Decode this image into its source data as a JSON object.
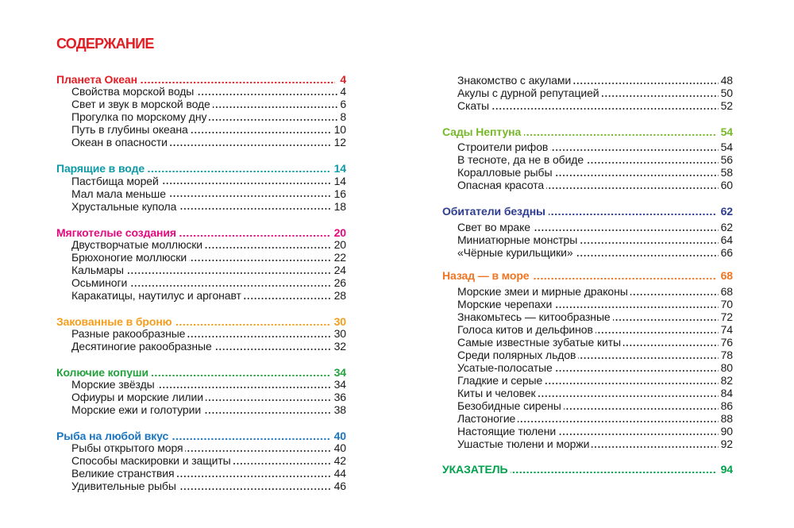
{
  "page": {
    "title": "СОДЕРЖАНИЕ",
    "title_color": "#e21e25",
    "background": "#ffffff",
    "text_color": "#1a1a1a"
  },
  "columns": [
    {
      "side": "left",
      "groups": [
        {
          "heading": {
            "label": "Планета Океан",
            "page": "4",
            "color": "#e21e25"
          },
          "items": [
            {
              "label": "Свойства морской воды",
              "page": "4"
            },
            {
              "label": "Свет и звук в морской воде",
              "page": "6"
            },
            {
              "label": "Прогулка по морскому дну",
              "page": "8"
            },
            {
              "label": "Путь в глубины океана",
              "page": "10"
            },
            {
              "label": "Океан в опасности",
              "page": "12"
            }
          ]
        },
        {
          "heading": {
            "label": "Парящие в воде",
            "page": "14",
            "color": "#0e9aa8"
          },
          "items": [
            {
              "label": "Пастбища морей",
              "page": "14"
            },
            {
              "label": "Мал мала меньше",
              "page": "16"
            },
            {
              "label": "Хрустальные купола",
              "page": "18"
            }
          ]
        },
        {
          "heading": {
            "label": "Мягкотелые создания",
            "page": "20",
            "color": "#e5097f"
          },
          "items": [
            {
              "label": "Двустворчатые моллюски",
              "page": "20"
            },
            {
              "label": "Брюхоногие моллюски",
              "page": "22"
            },
            {
              "label": "Кальмары",
              "page": "24"
            },
            {
              "label": "Осьминоги",
              "page": "26"
            },
            {
              "label": "Каракатицы, наутилус и аргонавт",
              "page": "28"
            }
          ]
        },
        {
          "heading": {
            "label": "Закованные в броню",
            "page": "30",
            "color": "#f49d1c"
          },
          "items": [
            {
              "label": "Разные ракообразные",
              "page": "30"
            },
            {
              "label": "Десятиногие ракообразные",
              "page": "32"
            }
          ]
        },
        {
          "heading": {
            "label": "Колючие копуши",
            "page": "34",
            "color": "#23a13d"
          },
          "items": [
            {
              "label": "Морские звёзды",
              "page": "34"
            },
            {
              "label": "Офиуры и морские лилии",
              "page": "36"
            },
            {
              "label": "Морские ежи и голотурии",
              "page": "38"
            }
          ]
        },
        {
          "heading": {
            "label": "Рыба на любой вкус",
            "page": "40",
            "color": "#1b75c0"
          },
          "items": [
            {
              "label": "Рыбы открытого моря",
              "page": "40"
            },
            {
              "label": "Способы маскировки и защиты",
              "page": "42"
            },
            {
              "label": "Великие странствия",
              "page": "44"
            },
            {
              "label": "Удивительные рыбы",
              "page": "46"
            }
          ]
        }
      ]
    },
    {
      "side": "right",
      "groups": [
        {
          "heading": null,
          "items": [
            {
              "label": "Знакомство с акулами",
              "page": "48"
            },
            {
              "label": "Акулы с дурной репутацией",
              "page": "50"
            },
            {
              "label": "Скаты",
              "page": "52"
            }
          ]
        },
        {
          "heading": {
            "label": "Сады Нептуна",
            "page": "54",
            "color": "#76b82a"
          },
          "items": [
            {
              "label": "Строители рифов",
              "page": "54"
            },
            {
              "label": "В тесноте, да не в обиде",
              "page": "56"
            },
            {
              "label": "Коралловые рыбы",
              "page": "58"
            },
            {
              "label": "Опасная красота",
              "page": "60"
            }
          ]
        },
        {
          "heading": {
            "label": "Обитатели бездны",
            "page": "62",
            "color": "#2e3d91"
          },
          "items": [
            {
              "label": "Свет во мраке",
              "page": "62"
            },
            {
              "label": "Миниатюрные монстры",
              "page": "64"
            },
            {
              "label": "«Чёрные курильщики»",
              "page": "66"
            }
          ]
        },
        {
          "heading": {
            "label": "Назад — в море",
            "page": "68",
            "color": "#ee7522"
          },
          "items": [
            {
              "label": "Морские змеи и мирные драконы",
              "page": "68"
            },
            {
              "label": "Морские черепахи",
              "page": "70"
            },
            {
              "label": "Знакомьтесь — китообразные",
              "page": "72"
            },
            {
              "label": "Голоса китов и дельфинов",
              "page": "74"
            },
            {
              "label": "Самые известные зубатые киты",
              "page": "76"
            },
            {
              "label": "Среди полярных льдов",
              "page": "78"
            },
            {
              "label": "Усатые-полосатые",
              "page": "80"
            },
            {
              "label": "Гладкие и серые",
              "page": "82"
            },
            {
              "label": "Киты и человек",
              "page": "84"
            },
            {
              "label": "Безобидные сирены",
              "page": "86"
            },
            {
              "label": "Ластоногие",
              "page": "88"
            },
            {
              "label": "Настоящие тюлени",
              "page": "90"
            },
            {
              "label": "Ушастые тюлени и моржи",
              "page": "92"
            }
          ]
        },
        {
          "heading": {
            "label": "УКАЗАТЕЛЬ",
            "page": "94",
            "color": "#00a14b",
            "index": true
          },
          "items": []
        }
      ]
    }
  ]
}
